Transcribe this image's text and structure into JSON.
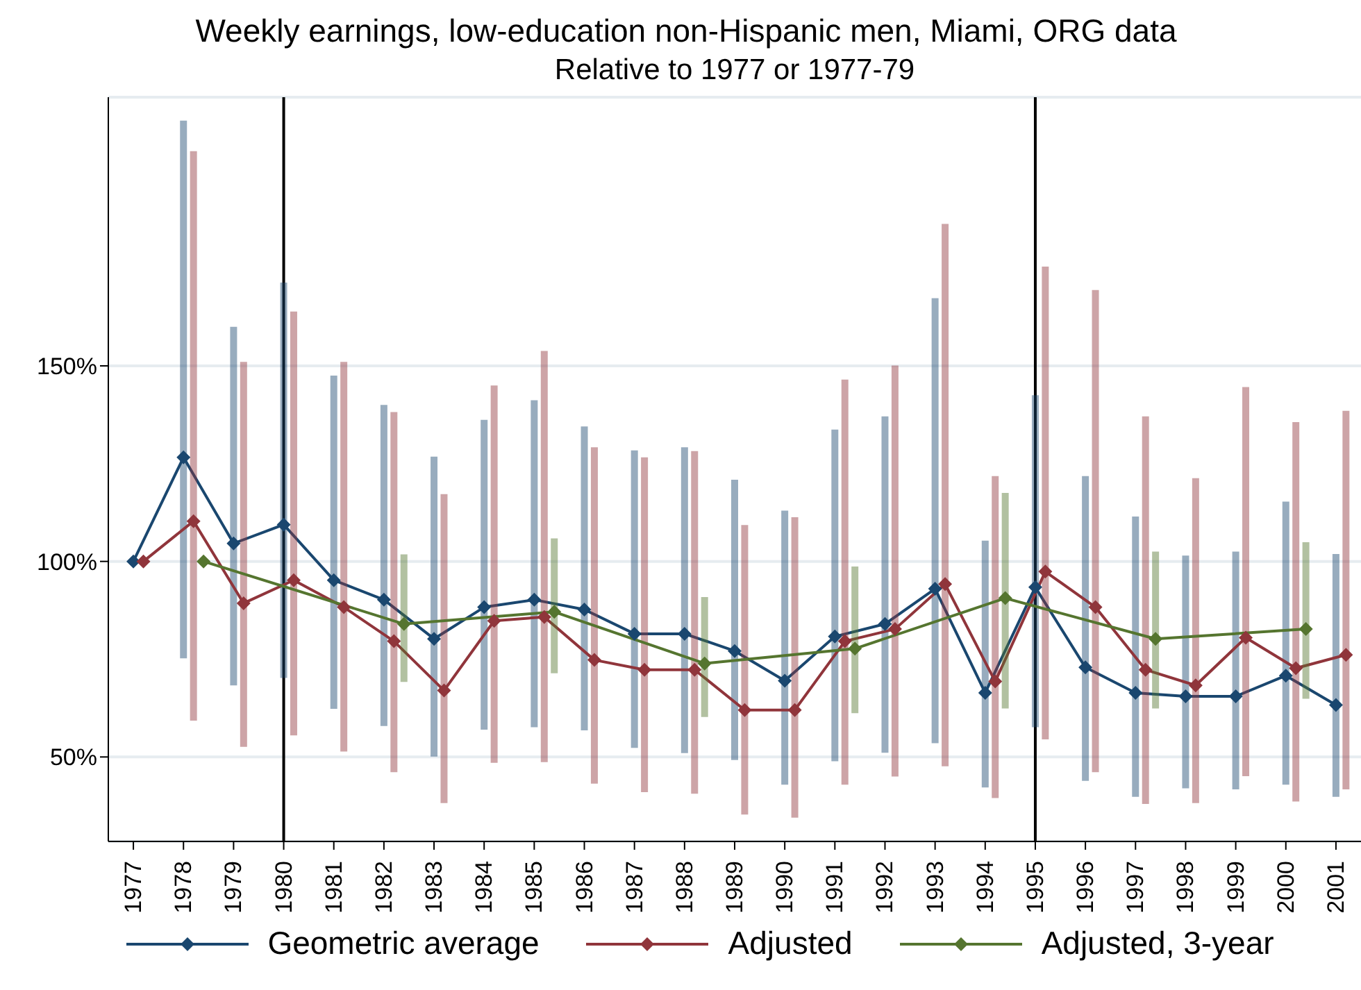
{
  "chart_data": {
    "type": "line",
    "title": "Weekly earnings, low-education non-Hispanic men, Miami, ORG data",
    "subtitle": "Relative to 1977 or 1977-79",
    "xlim": [
      1976.5,
      2001.5
    ],
    "xticks": [
      1977,
      1978,
      1979,
      1980,
      1981,
      1982,
      1983,
      1984,
      1985,
      1986,
      1987,
      1988,
      1989,
      1990,
      1991,
      1992,
      1993,
      1994,
      1995,
      1996,
      1997,
      1998,
      1999,
      2000,
      2001
    ],
    "ylim": [
      28.4,
      218.7
    ],
    "yticks": [
      {
        "value": 50,
        "label": "50%"
      },
      {
        "value": 100,
        "label": "100%"
      },
      {
        "value": 150,
        "label": "150%"
      }
    ],
    "grid": "y",
    "legend": "bottom",
    "marker": "diamond",
    "line_style": "solid",
    "ref_lines": [
      {
        "axis": "x",
        "value": 1980,
        "color": "#000000"
      },
      {
        "axis": "x",
        "value": 1995,
        "color": "#000000"
      }
    ],
    "series": [
      {
        "name": "Geometric average",
        "color": "#1a476f",
        "x": [
          1977,
          1978,
          1979,
          1980,
          1981,
          1982,
          1983,
          1984,
          1985,
          1986,
          1987,
          1988,
          1989,
          1990,
          1991,
          1992,
          1993,
          1994,
          1995,
          1996,
          1997,
          1998,
          1999,
          2000,
          2001
        ],
        "values": [
          100,
          126.6,
          104.6,
          109.4,
          95.2,
          90.2,
          80.2,
          88.3,
          90.2,
          87.7,
          81.5,
          81.5,
          77.1,
          69.5,
          80.8,
          84,
          93,
          66.4,
          93.4,
          72.9,
          66.4,
          65.5,
          65.5,
          70.8,
          63.3
        ],
        "errors": [
          null,
          [
            75.2,
            212.7
          ],
          [
            68.3,
            160
          ],
          [
            70.2,
            171.3
          ],
          [
            62.3,
            147.5
          ],
          [
            57.9,
            140
          ],
          [
            50.1,
            126.8
          ],
          [
            57,
            136.2
          ],
          [
            57.6,
            141.2
          ],
          [
            56.8,
            134.5
          ],
          [
            52.3,
            128.4
          ],
          [
            51,
            129.2
          ],
          [
            49.2,
            120.9
          ],
          [
            42.9,
            113
          ],
          [
            48.9,
            133.7
          ],
          [
            51.1,
            137.1
          ],
          [
            53.5,
            167.3
          ],
          [
            42.2,
            105.3
          ],
          [
            57.6,
            142.5
          ],
          [
            43.9,
            121.8
          ],
          [
            39.8,
            111.5
          ],
          [
            42,
            101.5
          ],
          [
            41.7,
            102.5
          ],
          [
            42.9,
            115.3
          ],
          [
            39.8,
            101.9
          ]
        ]
      },
      {
        "name": "Adjusted",
        "color": "#90353b",
        "x": [
          1977.2,
          1978.2,
          1979.2,
          1980.2,
          1981.2,
          1982.2,
          1983.2,
          1984.2,
          1985.2,
          1986.2,
          1987.2,
          1988.2,
          1989.2,
          1990.2,
          1991.2,
          1992.2,
          1993.2,
          1994.2,
          1995.2,
          1996.2,
          1997.2,
          1998.2,
          1999.2,
          2000.2,
          2001.2
        ],
        "values": [
          100,
          110.3,
          89.3,
          95.2,
          88.3,
          79.6,
          67,
          84.8,
          85.8,
          74.8,
          72.3,
          72.3,
          62,
          62,
          79.6,
          82.7,
          94.2,
          69.3,
          97.4,
          88.3,
          72.3,
          68.3,
          80.5,
          72.7,
          76.1
        ],
        "errors": [
          null,
          [
            59.3,
            204.9
          ],
          [
            52.6,
            151
          ],
          [
            55.5,
            163.9
          ],
          [
            51.4,
            151
          ],
          [
            46.1,
            138.2
          ],
          [
            38.2,
            117.2
          ],
          [
            48.5,
            145
          ],
          [
            48.7,
            153.8
          ],
          [
            43.2,
            129.2
          ],
          [
            41,
            126.6
          ],
          [
            40.6,
            128.2
          ],
          [
            35.3,
            109.3
          ],
          [
            34.5,
            111.3
          ],
          [
            42.9,
            146.5
          ],
          [
            45,
            150.1
          ],
          [
            47.6,
            186.3
          ],
          [
            39.5,
            121.8
          ],
          [
            54.5,
            175.4
          ],
          [
            46.1,
            169.4
          ],
          [
            38,
            137.1
          ],
          [
            38.2,
            121.3
          ],
          [
            45.1,
            144.6
          ],
          [
            38.6,
            135.6
          ],
          [
            41.7,
            138.5
          ]
        ]
      },
      {
        "name": "Adjusted, 3-year",
        "color": "#55752f",
        "x": [
          1978.4,
          1982.4,
          1985.4,
          1988.4,
          1991.4,
          1994.4,
          1997.4,
          2000.4
        ],
        "values": [
          100,
          84,
          87.1,
          73.9,
          77.7,
          90.6,
          80.2,
          82.7
        ],
        "errors": [
          null,
          [
            69.2,
            101.8
          ],
          [
            71.4,
            105.9
          ],
          [
            60.2,
            90.9
          ],
          [
            61.2,
            98.7
          ],
          [
            62.4,
            117.5
          ],
          [
            62.4,
            102.5
          ],
          [
            64.9,
            104.9
          ]
        ]
      }
    ]
  }
}
